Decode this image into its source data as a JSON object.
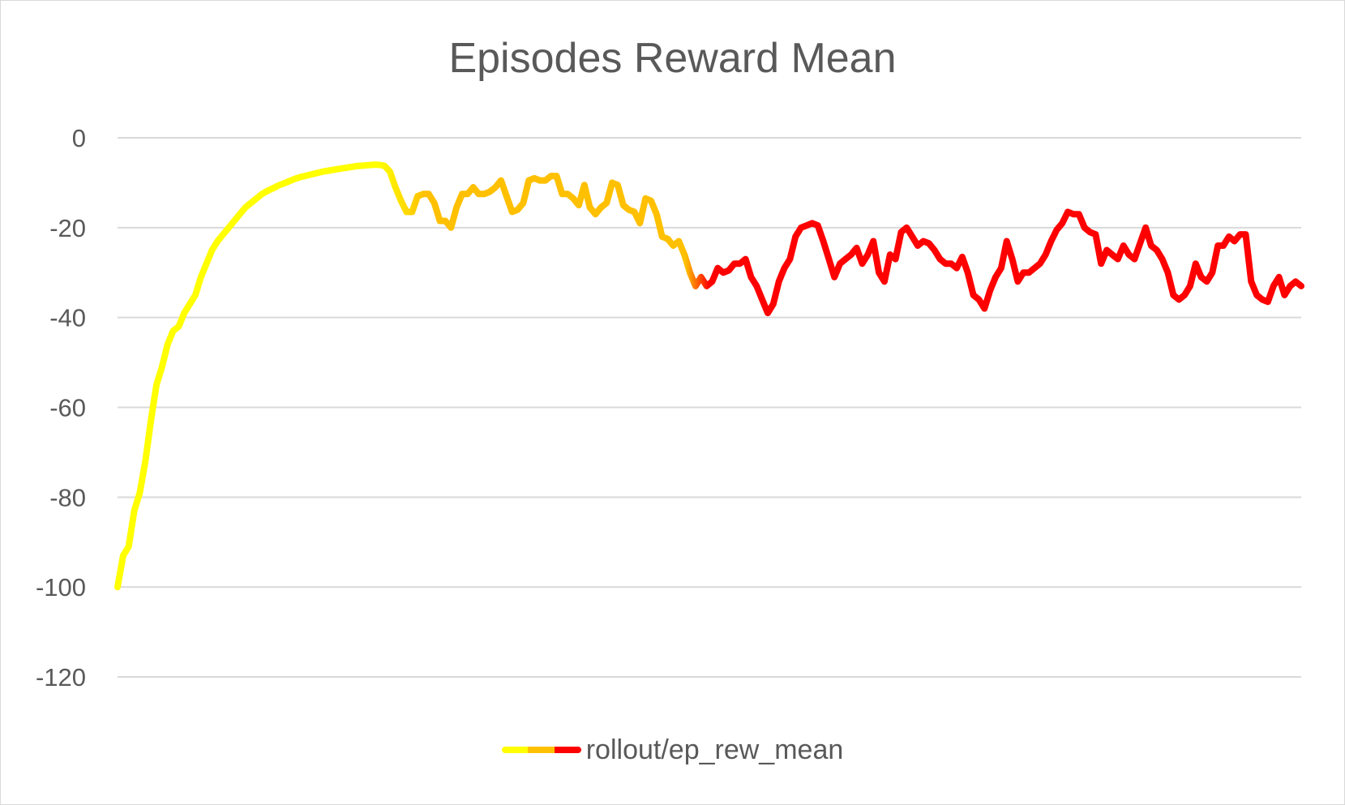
{
  "chart_data": {
    "type": "line",
    "title": "Episodes Reward Mean",
    "xlabel": "",
    "ylabel": "",
    "ylim": [
      -120,
      0
    ],
    "yticks": [
      "0",
      "-20",
      "-40",
      "-60",
      "-80",
      "-100",
      "-120"
    ],
    "ytick_values": [
      0,
      -20,
      -40,
      -60,
      -80,
      -100,
      -120
    ],
    "grid": true,
    "legend_position": "bottom",
    "series": [
      {
        "name": "rollout/ep_rew_mean",
        "gradient_colors": [
          "#ffff00",
          "#ffc000",
          "#ff0000"
        ],
        "values": [
          -100,
          -93,
          -91,
          -83,
          -79,
          -72,
          -63,
          -55,
          -51,
          -46,
          -43,
          -42,
          -39,
          -37,
          -35,
          -31,
          -28,
          -25,
          -23,
          -21.5,
          -20,
          -18.5,
          -17,
          -15.5,
          -14.5,
          -13.5,
          -12.5,
          -11.8,
          -11.2,
          -10.6,
          -10.1,
          -9.6,
          -9.1,
          -8.7,
          -8.4,
          -8.1,
          -7.8,
          -7.5,
          -7.3,
          -7.1,
          -6.9,
          -6.7,
          -6.5,
          -6.3,
          -6.2,
          -6.1,
          -6.0,
          -6.0,
          -6.2,
          -7.5,
          -11,
          -14,
          -16.5,
          -16.5,
          -13,
          -12.5,
          -12.5,
          -14.5,
          -18.5,
          -18.5,
          -20,
          -15.5,
          -12.5,
          -12.5,
          -11,
          -12.5,
          -12.5,
          -12,
          -11,
          -9.5,
          -13,
          -16.5,
          -16,
          -14.5,
          -9.5,
          -9,
          -9.5,
          -9.5,
          -8.5,
          -8.5,
          -12.5,
          -12.5,
          -13.5,
          -15,
          -10.5,
          -15.5,
          -17,
          -15.5,
          -14.5,
          -10,
          -10.5,
          -15,
          -16,
          -16.5,
          -19,
          -13.5,
          -14,
          -17,
          -22,
          -22.5,
          -24,
          -23,
          -26,
          -30,
          -33,
          -31,
          -33,
          -32,
          -29,
          -30,
          -29.5,
          -28,
          -28,
          -27,
          -31,
          -33,
          -36,
          -39,
          -37,
          -32,
          -29,
          -27,
          -22,
          -20,
          -19.5,
          -19,
          -19.5,
          -23,
          -27,
          -31,
          -28,
          -27,
          -26,
          -24.5,
          -28,
          -26,
          -23,
          -30,
          -32,
          -26,
          -27,
          -21,
          -20,
          -22,
          -24,
          -23,
          -23.5,
          -25,
          -27,
          -28,
          -28,
          -29,
          -26.5,
          -30,
          -35,
          -36,
          -38,
          -34,
          -31,
          -29,
          -23,
          -27,
          -32,
          -30,
          -30,
          -29,
          -28,
          -26,
          -23,
          -20.5,
          -19,
          -16.5,
          -17,
          -17,
          -20,
          -21,
          -21.5,
          -28,
          -25,
          -26,
          -27,
          -24,
          -26,
          -27,
          -23.5,
          -20,
          -24,
          -25,
          -27,
          -30,
          -35,
          -36,
          -35,
          -33,
          -28,
          -31,
          -32,
          -30,
          -24,
          -24,
          -22,
          -23,
          -21.5,
          -21.5,
          -32,
          -35,
          -36,
          -36.5,
          -33,
          -31,
          -35,
          -33,
          -32,
          -33
        ]
      }
    ]
  }
}
